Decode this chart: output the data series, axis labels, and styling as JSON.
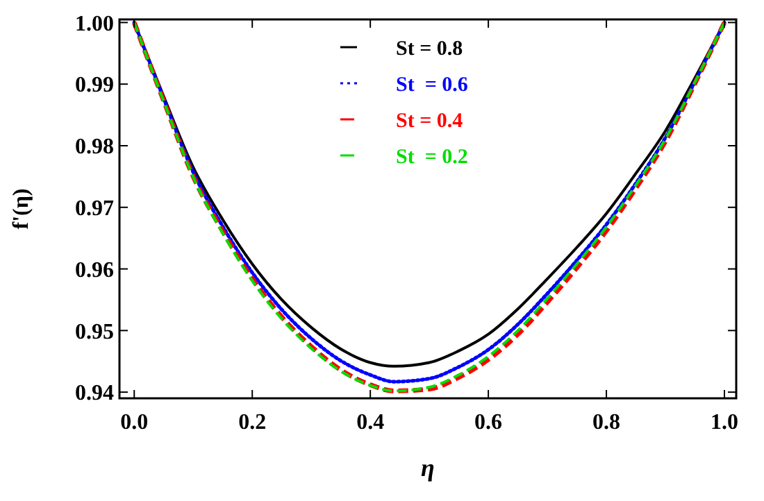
{
  "chart_data": {
    "type": "line",
    "xlabel": "η",
    "ylabel": "f'(η)",
    "x": [
      0,
      0.05,
      0.1,
      0.15,
      0.2,
      0.25,
      0.3,
      0.35,
      0.4,
      0.44,
      0.5,
      0.55,
      0.6,
      0.65,
      0.7,
      0.75,
      0.8,
      0.85,
      0.9,
      0.95,
      1
    ],
    "series": [
      {
        "name": "St = 0.8",
        "color": "#000000",
        "line_style": "solid",
        "values": [
          1,
          0.988,
          0.9765,
          0.968,
          0.9608,
          0.955,
          0.9505,
          0.947,
          0.9448,
          0.9442,
          0.9448,
          0.9467,
          0.9494,
          0.9535,
          0.9584,
          0.9635,
          0.969,
          0.9755,
          0.9824,
          0.991,
          1
        ]
      },
      {
        "name": "St  = 0.6",
        "color": "#0000ff",
        "line_style": "dotted",
        "values": [
          1,
          0.9876,
          0.9757,
          0.9669,
          0.9594,
          0.9534,
          0.9487,
          0.9451,
          0.9428,
          0.9417,
          0.9422,
          0.9441,
          0.9469,
          0.951,
          0.956,
          0.9614,
          0.9672,
          0.9739,
          0.9813,
          0.9904,
          1
        ]
      },
      {
        "name": "St = 0.4",
        "color": "#ff0000",
        "line_style": "dashed",
        "values": [
          1,
          0.9873,
          0.975,
          0.9661,
          0.9584,
          0.9522,
          0.9474,
          0.9436,
          0.9412,
          0.9402,
          0.9405,
          0.9424,
          0.9453,
          0.9494,
          0.9546,
          0.9602,
          0.9662,
          0.9731,
          0.9807,
          0.9901,
          1
        ]
      },
      {
        "name": "St  = 0.2",
        "color": "#00dd00",
        "line_style": "dashed",
        "values": [
          1,
          0.9872,
          0.9749,
          0.9658,
          0.9581,
          0.9519,
          0.9471,
          0.9434,
          0.9411,
          0.9402,
          0.9408,
          0.9428,
          0.9458,
          0.95,
          0.9552,
          0.9608,
          0.9668,
          0.9736,
          0.9811,
          0.9903,
          1
        ]
      }
    ],
    "xlim": [
      -0.025,
      1.02
    ],
    "ylim": [
      0.939,
      1.0005
    ],
    "xticks": [
      {
        "value": 0,
        "label": "0.0"
      },
      0.2,
      0.4,
      0.6,
      0.8,
      {
        "value": 1,
        "label": "1.0"
      }
    ],
    "yticks": [
      0.94,
      0.95,
      0.96,
      0.97,
      0.98,
      0.99,
      {
        "value": 1,
        "label": "1.00"
      }
    ],
    "legend": "top",
    "grid": false
  }
}
